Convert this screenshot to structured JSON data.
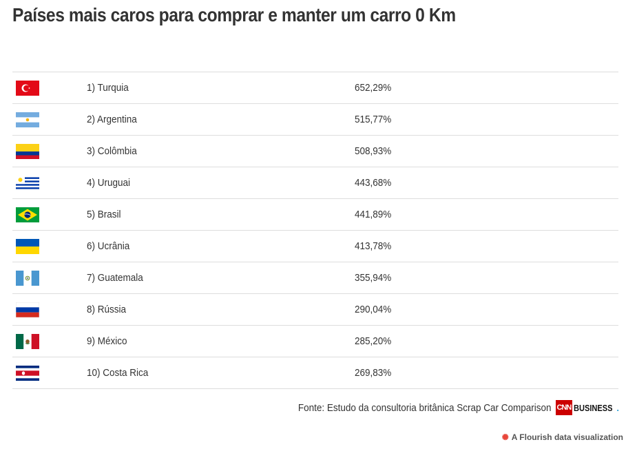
{
  "title": "Países mais caros para comprar e manter um carro 0 Km",
  "rows": [
    {
      "flag_icon": "turkey-flag-icon",
      "country": "1) Turquia",
      "value": "652,29%"
    },
    {
      "flag_icon": "argentina-flag-icon",
      "country": "2) Argentina",
      "value": "515,77%"
    },
    {
      "flag_icon": "colombia-flag-icon",
      "country": "3) Colômbia",
      "value": "508,93%"
    },
    {
      "flag_icon": "uruguay-flag-icon",
      "country": "4) Uruguai",
      "value": "443,68%"
    },
    {
      "flag_icon": "brazil-flag-icon",
      "country": "5) Brasil",
      "value": "441,89%"
    },
    {
      "flag_icon": "ukraine-flag-icon",
      "country": "6) Ucrânia",
      "value": "413,78%"
    },
    {
      "flag_icon": "guatemala-flag-icon",
      "country": "7) Guatemala",
      "value": "355,94%"
    },
    {
      "flag_icon": "russia-flag-icon",
      "country": "8) Rússia",
      "value": "290,04%"
    },
    {
      "flag_icon": "mexico-flag-icon",
      "country": "9) México",
      "value": "285,20%"
    },
    {
      "flag_icon": "costa-rica-flag-icon",
      "country": "10) Costa Rica",
      "value": "269,83%"
    }
  ],
  "footer": {
    "source": "Fonte: Estudo da consultoria britânica Scrap Car Comparison",
    "logo_mark": "CNN",
    "logo_text": "BUSINESS",
    "logo_dot": "."
  },
  "credit": {
    "icon": "flourish-icon",
    "text": "A Flourish data visualization"
  },
  "colors": {
    "text": "#333333",
    "divider": "#dddddd",
    "cnn_red": "#cc0000",
    "flourish_red": "#e8463a"
  }
}
